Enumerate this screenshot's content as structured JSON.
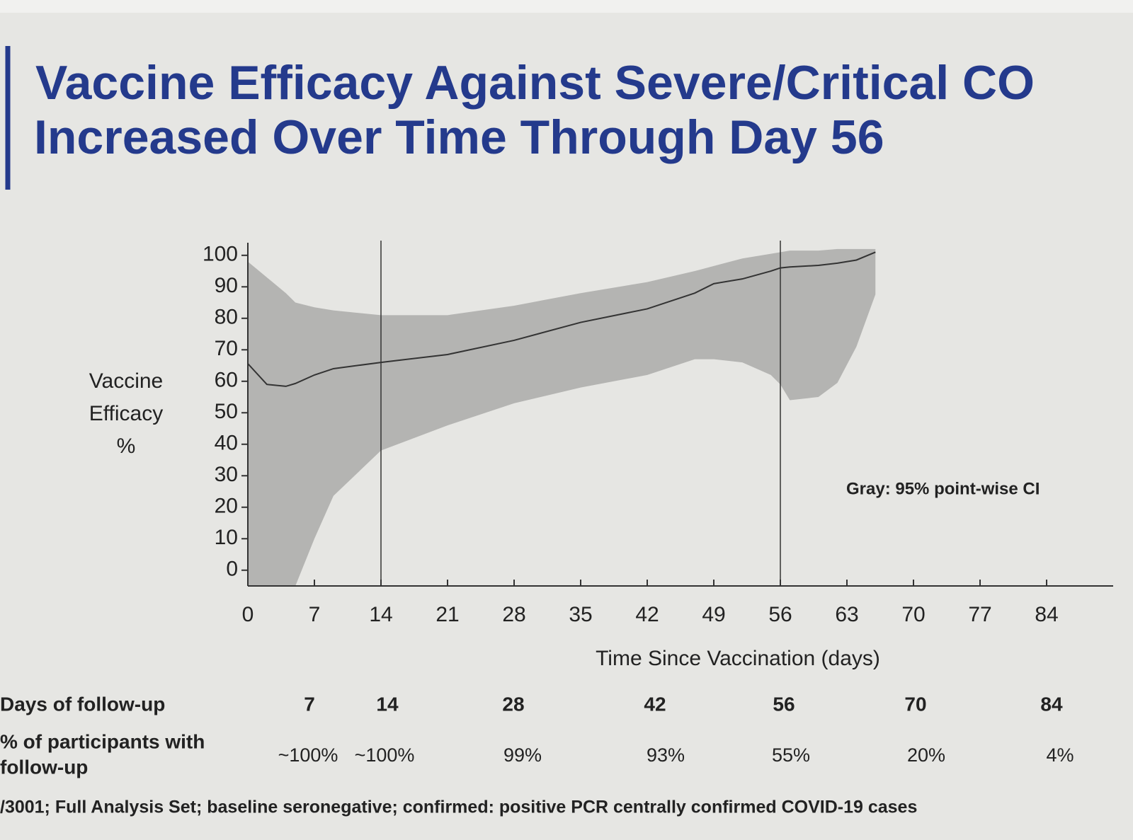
{
  "chart_data": {
    "type": "line",
    "title_lines": [
      "Vaccine Efficacy Against Severe/Critical CO",
      "Increased Over Time Through Day 56"
    ],
    "y_label": [
      "Vaccine",
      "Efficacy",
      "%"
    ],
    "x_label": "Time Since Vaccination (days)",
    "annotation": "Gray: 95% point-wise CI",
    "x": [
      0,
      2,
      4,
      5,
      7,
      9,
      14,
      21,
      28,
      35,
      42,
      47,
      49,
      52,
      55,
      56,
      57,
      60,
      62,
      64,
      66
    ],
    "series": [
      {
        "color": "#333333",
        "values": [
          65.6,
          59,
          58.4,
          59.3,
          62,
          64,
          66,
          68.5,
          73,
          78.7,
          83,
          88,
          91,
          92.5,
          95,
          96,
          96.3,
          96.8,
          97.5,
          98.5,
          101
        ]
      }
    ],
    "band": {
      "color": "#b4b4b2",
      "lower": [
        -5,
        -5,
        -5,
        -5,
        10,
        23.6,
        38,
        46,
        53,
        58,
        62,
        67,
        67,
        66,
        62,
        59,
        54,
        55,
        59.5,
        71,
        87.6
      ],
      "upper": [
        98,
        93,
        88,
        85,
        83.5,
        82.5,
        81,
        81,
        84,
        88,
        91.5,
        95,
        96.6,
        99,
        100.5,
        101,
        101.5,
        101.5,
        102,
        102,
        102
      ]
    },
    "vlines": [
      14,
      56
    ],
    "xlim": [
      0,
      91
    ],
    "xticks": [
      0,
      7,
      14,
      21,
      28,
      35,
      42,
      49,
      56,
      63,
      70,
      77,
      84
    ],
    "ylim": [
      -5,
      104
    ],
    "yticks": [
      0,
      10,
      20,
      30,
      40,
      50,
      60,
      70,
      80,
      90,
      100
    ],
    "table": {
      "row_labels": [
        [
          "Days of follow-up"
        ],
        [
          "% of participants with",
          "follow-up"
        ]
      ],
      "days": [
        "7",
        "14",
        "28",
        "42",
        "56",
        "70",
        "84"
      ],
      "percent": [
        "~100%",
        "~100%",
        "99%",
        "93%",
        "55%",
        "20%",
        "4%"
      ]
    },
    "footnote": "/3001; Full Analysis Set; baseline seronegative; confirmed: positive PCR centrally confirmed COVID-19 cases"
  }
}
